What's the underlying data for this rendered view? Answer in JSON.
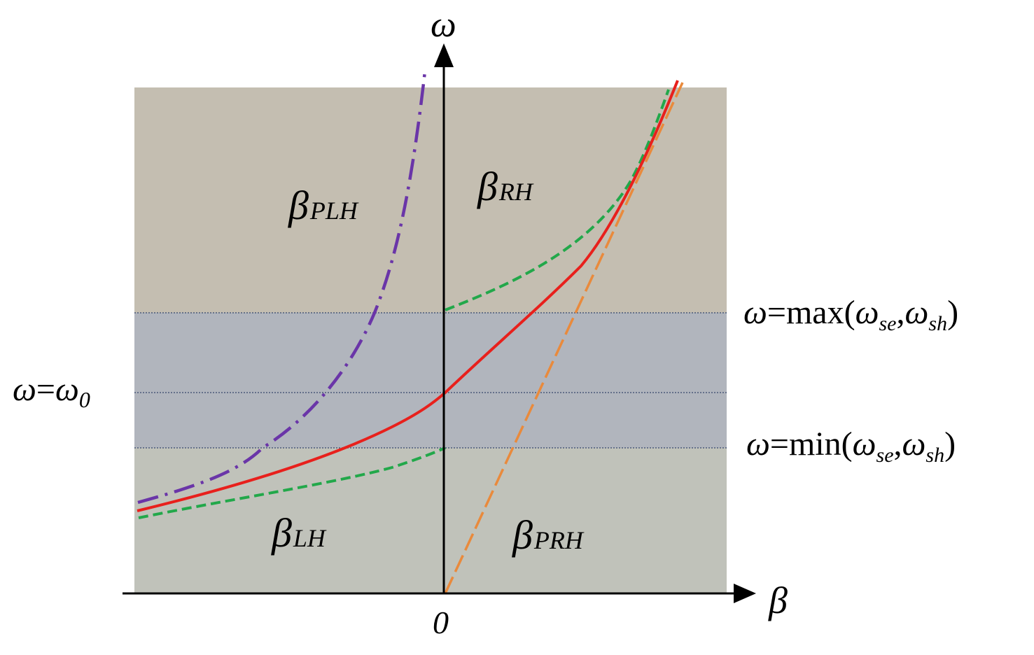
{
  "axes": {
    "y_label": "ω",
    "x_label": "β",
    "origin_label": "0"
  },
  "regions": {
    "upper_color": "#c4beb1",
    "band_color": "#b1b5bd",
    "lower_color": "#c0c2ba"
  },
  "curve_labels": {
    "plh": {
      "base": "β",
      "sub": "PLH"
    },
    "rh": {
      "base": "β",
      "sub": "RH"
    },
    "lh": {
      "base": "β",
      "sub": "LH"
    },
    "prh": {
      "base": "β",
      "sub": "PRH"
    }
  },
  "level_labels": {
    "max": {
      "lhs": "ω",
      "eq": "=max(",
      "w1": "ω",
      "s1": "se",
      "comma": ",",
      "w2": "ω",
      "s2": "sh",
      "close": ")"
    },
    "omega0": {
      "lhs": "ω",
      "eq": "=",
      "w": "ω",
      "sub": "0"
    },
    "min": {
      "lhs": "ω",
      "eq": "=min(",
      "w1": "ω",
      "s1": "se",
      "comma": ",",
      "w2": "ω",
      "s2": "sh",
      "close": ")"
    }
  },
  "curve_colors": {
    "crlh": "#e8201c",
    "rh_lh_bounds": "#22a84a",
    "plh": "#6a35a8",
    "prh": "#e98a3c",
    "axes": "#000000",
    "level_lines": "#4a5a7a"
  }
}
